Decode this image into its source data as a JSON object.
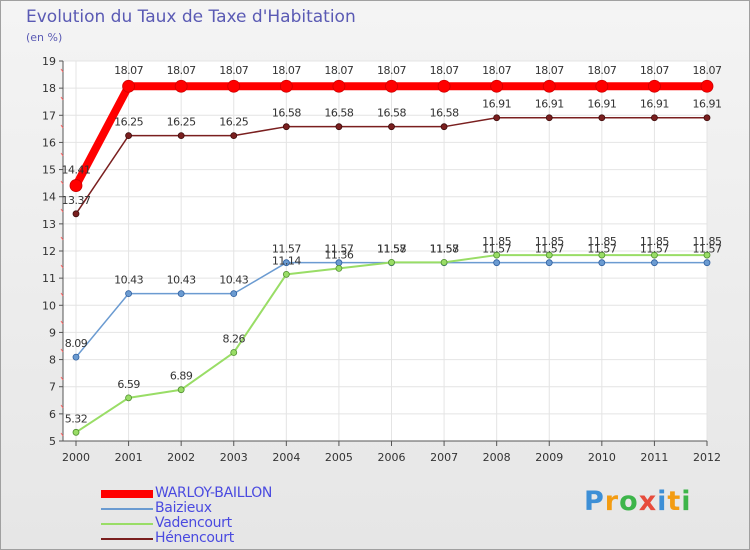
{
  "header": {
    "title": "Evolution du Taux de Taxe d'Habitation",
    "subtitle": "(en %)"
  },
  "chart_data": {
    "type": "line",
    "title": "Evolution du Taux de Taxe d'Habitation",
    "ylabel": "(en %)",
    "xlabel": "",
    "ylim": [
      5,
      19
    ],
    "yticks": [
      5,
      6,
      7,
      8,
      9,
      10,
      11,
      12,
      13,
      14,
      15,
      16,
      17,
      18,
      19
    ],
    "categories": [
      "2000",
      "2001",
      "2002",
      "2003",
      "2004",
      "2005",
      "2006",
      "2007",
      "2008",
      "2009",
      "2010",
      "2011",
      "2012"
    ],
    "grid": true,
    "series": [
      {
        "name": "WARLOY-BAILLON",
        "color": "#ff0000",
        "values": [
          14.41,
          18.07,
          18.07,
          18.07,
          18.07,
          18.07,
          18.07,
          18.07,
          18.07,
          18.07,
          18.07,
          18.07,
          18.07
        ],
        "labels": [
          "14.41",
          "18.07",
          "18.07",
          "18.07",
          "18.07",
          "18.07",
          "18.07",
          "18.07",
          "18.07",
          "18.07",
          "18.07",
          "18.07",
          "18.07"
        ]
      },
      {
        "name": "Baizieux",
        "color": "#6b9bd1",
        "values": [
          8.09,
          10.43,
          10.43,
          10.43,
          11.57,
          11.57,
          11.57,
          11.57,
          11.57,
          11.57,
          11.57,
          11.57,
          11.57
        ],
        "labels": [
          "8.09",
          "10.43",
          "10.43",
          "10.43",
          "11.57",
          "11.57",
          "11.57",
          "11.57",
          "11.57",
          "11.57",
          "11.57",
          "11.57",
          "11.57"
        ]
      },
      {
        "name": "Vadencourt",
        "color": "#99dd66",
        "values": [
          5.32,
          6.59,
          6.89,
          8.26,
          11.14,
          11.36,
          11.58,
          11.58,
          11.85,
          11.85,
          11.85,
          11.85,
          11.85
        ],
        "labels": [
          "5.32",
          "6.59",
          "6.89",
          "8.26",
          "11.14",
          "11.36",
          "11.58",
          "11.58",
          "11.85",
          "11.85",
          "11.85",
          "11.85",
          "11.85"
        ]
      },
      {
        "name": "Hénencourt",
        "color": "#7a1f1f",
        "values": [
          13.37,
          16.25,
          16.25,
          16.25,
          16.58,
          16.58,
          16.58,
          16.58,
          16.91,
          16.91,
          16.91,
          16.91,
          16.91
        ],
        "labels": [
          "13.37",
          "16.25",
          "16.25",
          "16.25",
          "16.58",
          "16.58",
          "16.58",
          "16.58",
          "16.91",
          "16.91",
          "16.91",
          "16.91",
          "16.91"
        ]
      }
    ],
    "legend_position": "bottom-left"
  },
  "logo": {
    "letters": [
      "P",
      "r",
      "o",
      "x",
      "i",
      "t",
      "i"
    ],
    "colors": [
      "#3d8fd6",
      "#f39c12",
      "#3db54a",
      "#e74c3c",
      "#3d8fd6",
      "#f39c12",
      "#3db54a"
    ]
  }
}
